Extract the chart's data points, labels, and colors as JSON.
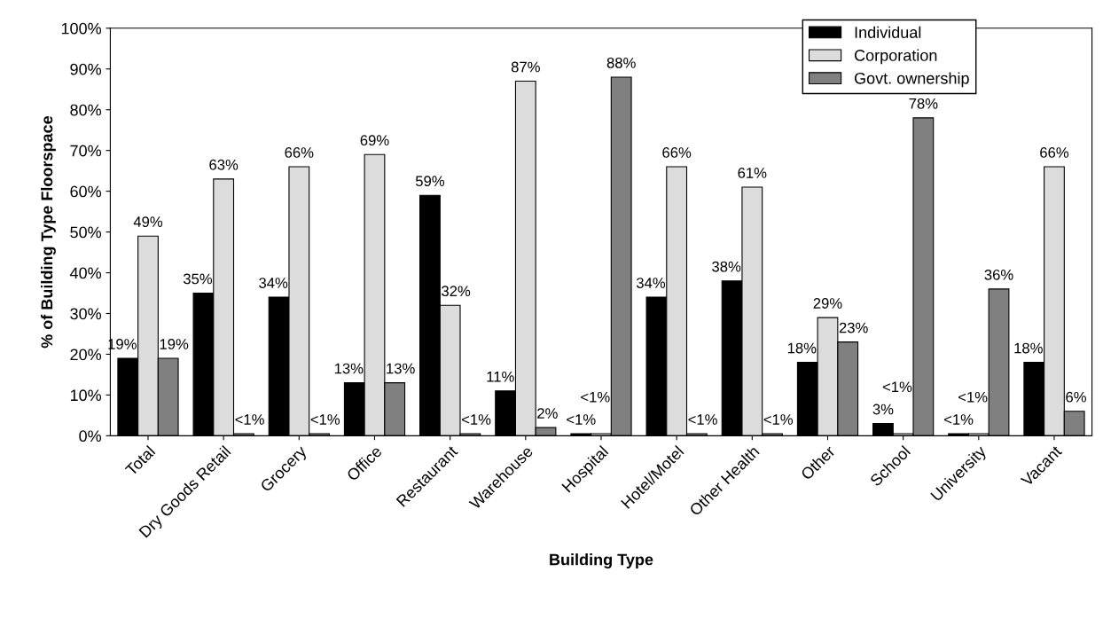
{
  "chart_data": {
    "type": "bar",
    "xlabel": "Building Type",
    "ylabel": "% of Building Type Floorspace",
    "categories": [
      "Total",
      "Dry Goods Retail",
      "Grocery",
      "Office",
      "Restaurant",
      "Warehouse",
      "Hospital",
      "Hotel/Motel",
      "Other Health",
      "Other",
      "School",
      "University",
      "Vacant"
    ],
    "series": [
      {
        "name": "Individual",
        "color": "#000000",
        "values": [
          19,
          35,
          34,
          13,
          59,
          11,
          0.5,
          34,
          38,
          18,
          3,
          0.5,
          18
        ],
        "value_labels": [
          "19%",
          "35%",
          "34%",
          "13%",
          "59%",
          "11%",
          "<1%",
          "34%",
          "38%",
          "18%",
          "3%",
          "<1%",
          "18%"
        ]
      },
      {
        "name": "Corporation",
        "color": "#dcdcdc",
        "values": [
          49,
          63,
          66,
          69,
          32,
          87,
          0.5,
          66,
          61,
          29,
          0.5,
          0.5,
          66
        ],
        "value_labels": [
          "49%",
          "63%",
          "66%",
          "69%",
          "32%",
          "87%",
          "<1%",
          "66%",
          "61%",
          "29%",
          "<1%",
          "<1%",
          "66%"
        ]
      },
      {
        "name": "Govt. ownership",
        "color": "#808080",
        "values": [
          19,
          0.5,
          0.5,
          13,
          0.5,
          2,
          88,
          0.5,
          0.5,
          23,
          78,
          36,
          6
        ],
        "value_labels": [
          "19%",
          "<1%",
          "<1%",
          "13%",
          "<1%",
          "2%",
          "88%",
          "<1%",
          "<1%",
          "23%",
          "78%",
          "36%",
          "6%"
        ]
      }
    ],
    "ylim": [
      0,
      100
    ],
    "yticks": [
      {
        "value": 0,
        "label": "0%"
      },
      {
        "value": 10,
        "label": "10%"
      },
      {
        "value": 20,
        "label": "20%"
      },
      {
        "value": 30,
        "label": "30%"
      },
      {
        "value": 40,
        "label": "40%"
      },
      {
        "value": 50,
        "label": "50%"
      },
      {
        "value": 60,
        "label": "60%"
      },
      {
        "value": 70,
        "label": "70%"
      },
      {
        "value": 80,
        "label": "80%"
      },
      {
        "value": 90,
        "label": "90%"
      },
      {
        "value": 100,
        "label": "100%"
      }
    ],
    "legend": "top right"
  }
}
